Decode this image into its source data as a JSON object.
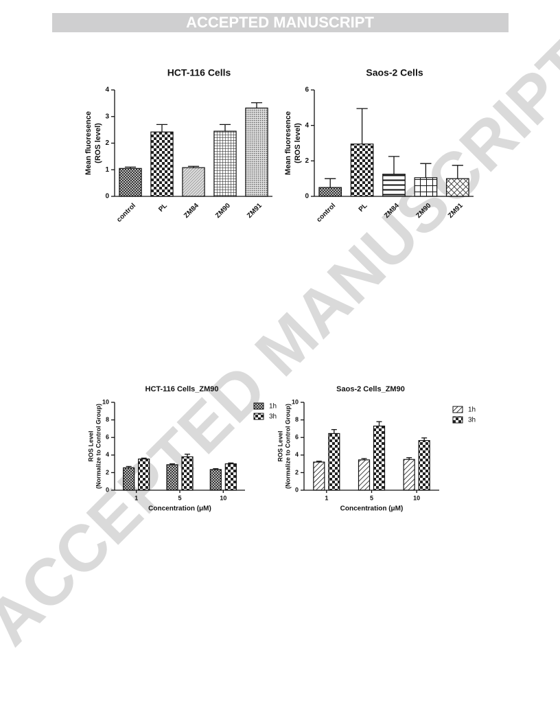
{
  "header": {
    "title": "ACCEPTED MANUSCRIPT"
  },
  "watermark": "ACCEPTED MANUSCRIPT",
  "chart_data": [
    {
      "type": "bar",
      "title": "HCT-116 Cells",
      "ylabel": [
        "Mean fluoresence",
        "(ROS level)"
      ],
      "categories": [
        "control",
        "PL",
        "ZM84",
        "ZM90",
        "ZM91"
      ],
      "values": [
        1.05,
        2.42,
        1.08,
        2.45,
        3.32
      ],
      "errors": [
        0.05,
        0.28,
        0.05,
        0.25,
        0.2
      ],
      "ylim": [
        0,
        4
      ],
      "yticks": [
        0,
        1,
        2,
        3,
        4
      ]
    },
    {
      "type": "bar",
      "title": "Saos-2 Cells",
      "ylabel": [
        "Mean fluoresence",
        "(ROS level)"
      ],
      "categories": [
        "control",
        "PL",
        "ZM84",
        "ZM90",
        "ZM91"
      ],
      "values": [
        0.5,
        2.95,
        1.25,
        1.05,
        1.0
      ],
      "errors": [
        0.5,
        2.0,
        1.0,
        0.8,
        0.75
      ],
      "ylim": [
        0,
        6
      ],
      "yticks": [
        0,
        2,
        4,
        6
      ]
    },
    {
      "type": "bar",
      "title": "HCT-116 Cells_ZM90",
      "ylabel": [
        "ROS Level",
        "(Normalize to Control Group)"
      ],
      "xlabel": "Concentration (μM)",
      "categories": [
        "1",
        "5",
        "10"
      ],
      "series": [
        {
          "name": "1h",
          "values": [
            2.55,
            2.9,
            2.35
          ],
          "errors": [
            0.15,
            0.1,
            0.1
          ]
        },
        {
          "name": "3h",
          "values": [
            3.55,
            3.8,
            3.0
          ],
          "errors": [
            0.1,
            0.3,
            0.1
          ]
        }
      ],
      "ylim": [
        0,
        10
      ],
      "yticks": [
        0,
        2,
        4,
        6,
        8,
        10
      ],
      "legend": "top-right"
    },
    {
      "type": "bar",
      "title": "Saos-2 Cells_ZM90",
      "ylabel": [
        "ROS Level",
        "(Normalize to Control Group)"
      ],
      "xlabel": "Concentration (μM)",
      "categories": [
        "1",
        "5",
        "10"
      ],
      "series": [
        {
          "name": "1h",
          "values": [
            3.2,
            3.45,
            3.5
          ],
          "errors": [
            0.1,
            0.15,
            0.2
          ]
        },
        {
          "name": "3h",
          "values": [
            6.45,
            7.3,
            5.65
          ],
          "errors": [
            0.45,
            0.5,
            0.3
          ]
        }
      ],
      "ylim": [
        0,
        10
      ],
      "yticks": [
        0,
        2,
        4,
        6,
        8,
        10
      ],
      "legend": "top-right"
    }
  ]
}
